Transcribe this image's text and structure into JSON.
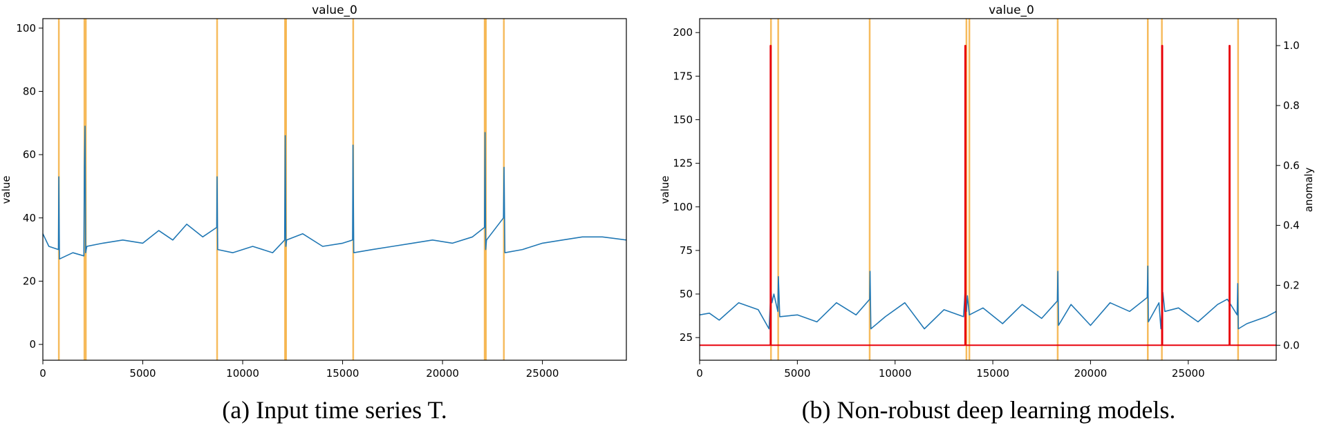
{
  "captions": {
    "a": "(a) Input time series T.",
    "b": "(b) Non-robust deep learning models."
  },
  "chart_data": [
    {
      "type": "line",
      "title": "value_0",
      "xlabel": "",
      "ylabel": "value",
      "xlim": [
        0,
        29200
      ],
      "ylim": [
        -5,
        103
      ],
      "xticks": [
        0,
        5000,
        10000,
        15000,
        20000,
        25000
      ],
      "yticks": [
        0,
        20,
        40,
        60,
        80,
        100
      ],
      "grid": false,
      "series": [
        {
          "color": "#1f77b4",
          "x": [
            0,
            300,
            780,
            800,
            830,
            1500,
            2050,
            2080,
            2110,
            2140,
            2200,
            3000,
            4000,
            5000,
            5800,
            6500,
            7200,
            8000,
            8700,
            8720,
            8750,
            9500,
            10500,
            11500,
            12100,
            12130,
            12160,
            12200,
            13000,
            14000,
            15000,
            15500,
            15520,
            15560,
            16500,
            17500,
            18500,
            19500,
            20500,
            21500,
            22100,
            22130,
            22160,
            22200,
            23050,
            23080,
            23120,
            24000,
            25000,
            26000,
            27000,
            28000,
            29200
          ],
          "y": [
            35,
            31,
            30,
            53,
            27,
            29,
            28,
            56,
            69,
            29,
            31,
            32,
            33,
            32,
            36,
            33,
            38,
            34,
            37,
            53,
            30,
            29,
            31,
            29,
            33,
            66,
            31,
            33,
            35,
            31,
            32,
            33,
            63,
            29,
            30,
            31,
            32,
            33,
            32,
            34,
            37,
            67,
            30,
            33,
            40,
            56,
            29,
            30,
            32,
            33,
            34,
            34,
            33
          ]
        }
      ],
      "anomaly_regions_x": [
        800,
        2080,
        2150,
        8720,
        12120,
        12170,
        15530,
        22110,
        22170,
        23070
      ],
      "anomaly_region_color": "#f5b041"
    },
    {
      "type": "line",
      "title": "value_0",
      "xlabel": "",
      "ylabel": "value",
      "ylabel_right": "anomaly",
      "xlim": [
        0,
        29500
      ],
      "ylim": [
        12,
        208
      ],
      "ylim_right": [
        -0.05,
        1.09
      ],
      "xticks": [
        0,
        5000,
        10000,
        15000,
        20000,
        25000
      ],
      "yticks": [
        25,
        50,
        75,
        100,
        125,
        150,
        175,
        200
      ],
      "yticks_right": [
        0.0,
        0.2,
        0.4,
        0.6,
        0.8,
        1.0
      ],
      "grid": false,
      "series": [
        {
          "color": "#1f77b4",
          "x": [
            0,
            500,
            1000,
            2000,
            3000,
            3550,
            3650,
            3700,
            3800,
            4000,
            4030,
            4100,
            5000,
            6000,
            7000,
            8000,
            8700,
            8720,
            8760,
            9500,
            10500,
            11500,
            12500,
            13500,
            13600,
            13650,
            13700,
            13800,
            14500,
            15500,
            16500,
            17500,
            18300,
            18330,
            18360,
            19000,
            20000,
            21000,
            22000,
            22900,
            22930,
            22960,
            23500,
            23600,
            23700,
            23800,
            24500,
            25500,
            26500,
            27000,
            27500,
            27530,
            27560,
            28000,
            29000,
            29500
          ],
          "y": [
            38,
            39,
            35,
            45,
            41,
            30,
            52,
            45,
            50,
            40,
            60,
            37,
            38,
            34,
            45,
            38,
            47,
            63,
            30,
            37,
            45,
            30,
            41,
            37,
            55,
            40,
            49,
            38,
            42,
            33,
            44,
            36,
            46,
            63,
            32,
            44,
            32,
            45,
            40,
            48,
            66,
            34,
            45,
            30,
            51,
            40,
            42,
            34,
            44,
            47,
            38,
            56,
            30,
            33,
            37,
            40
          ]
        },
        {
          "name": "anomaly",
          "color": "#e8000b",
          "axis": "right",
          "x": [
            0,
            3620,
            3620,
            3650,
            3650,
            13580,
            13580,
            13610,
            13610,
            23650,
            23650,
            23680,
            23680,
            27100,
            27100,
            27130,
            27130,
            29500
          ],
          "y": [
            0,
            0,
            1,
            1,
            0,
            0,
            1,
            1,
            0,
            0,
            1,
            1,
            0,
            0,
            1,
            1,
            0,
            0
          ]
        }
      ],
      "anomaly_regions_x": [
        3650,
        4020,
        8700,
        13650,
        13800,
        18320,
        22930,
        23650,
        27550
      ],
      "anomaly_region_color": "#f5b041"
    }
  ]
}
